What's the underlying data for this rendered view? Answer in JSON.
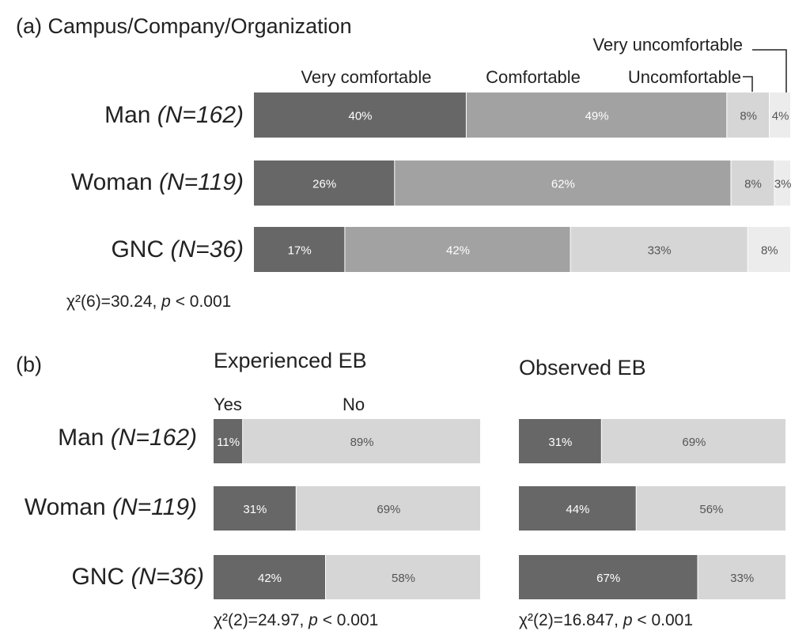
{
  "colors": {
    "very_dark": "#676767",
    "mid": "#a2a2a2",
    "light": "#d6d6d6",
    "very_light": "#ececec",
    "bar_text_dark": "#ffffff",
    "bar_text_light": "#555555",
    "text": "#222222"
  },
  "chart_data": [
    {
      "type": "bar",
      "stacked": true,
      "orientation": "horizontal",
      "title": "(a) Campus/Company/Organization",
      "categories": [
        "Man",
        "Woman",
        "GNC"
      ],
      "category_n": [
        "(N=162)",
        "(N=119)",
        "(N=36)"
      ],
      "series": [
        {
          "name": "Very comfortable",
          "values": [
            40,
            26,
            17
          ],
          "labels": [
            "40%",
            "26%",
            "17%"
          ]
        },
        {
          "name": "Comfortable",
          "values": [
            49,
            62,
            42
          ],
          "labels": [
            "49%",
            "62%",
            "42%"
          ]
        },
        {
          "name": "Uncomfortable",
          "values": [
            8,
            8,
            33
          ],
          "labels": [
            "8%",
            "8%",
            "33%"
          ]
        },
        {
          "name": "Very uncomfortable",
          "values": [
            4,
            3,
            8
          ],
          "labels": [
            "4%",
            "3%",
            "8%"
          ]
        }
      ],
      "xlim": [
        0,
        100
      ],
      "stat": {
        "chi": "χ²(6)=30.24, ",
        "p": "p",
        "rest": " < 0.001"
      }
    },
    {
      "type": "bar",
      "stacked": true,
      "orientation": "horizontal",
      "panel_label": "(b)",
      "title": "Experienced EB",
      "categories": [
        "Man",
        "Woman",
        "GNC"
      ],
      "category_n": [
        "(N=162)",
        "(N=119)",
        "(N=36)"
      ],
      "series": [
        {
          "name": "Yes",
          "values": [
            11,
            31,
            42
          ],
          "labels": [
            "11%",
            "31%",
            "42%"
          ]
        },
        {
          "name": "No",
          "values": [
            89,
            69,
            58
          ],
          "labels": [
            "89%",
            "69%",
            "58%"
          ]
        }
      ],
      "xlim": [
        0,
        100
      ],
      "stat": {
        "chi": "χ²(2)=24.97, ",
        "p": "p",
        "rest": " < 0.001"
      }
    },
    {
      "type": "bar",
      "stacked": true,
      "orientation": "horizontal",
      "title": "Observed EB",
      "categories": [
        "Man",
        "Woman",
        "GNC"
      ],
      "series": [
        {
          "values": [
            31,
            44,
            67
          ],
          "labels": [
            "31%",
            "44%",
            "67%"
          ]
        },
        {
          "values": [
            69,
            56,
            33
          ],
          "labels": [
            "69%",
            "56%",
            "33%"
          ]
        }
      ],
      "xlim": [
        0,
        100
      ],
      "stat": {
        "chi": "χ²(2)=16.847, ",
        "p": "p",
        "rest": " < 0.001"
      }
    }
  ]
}
